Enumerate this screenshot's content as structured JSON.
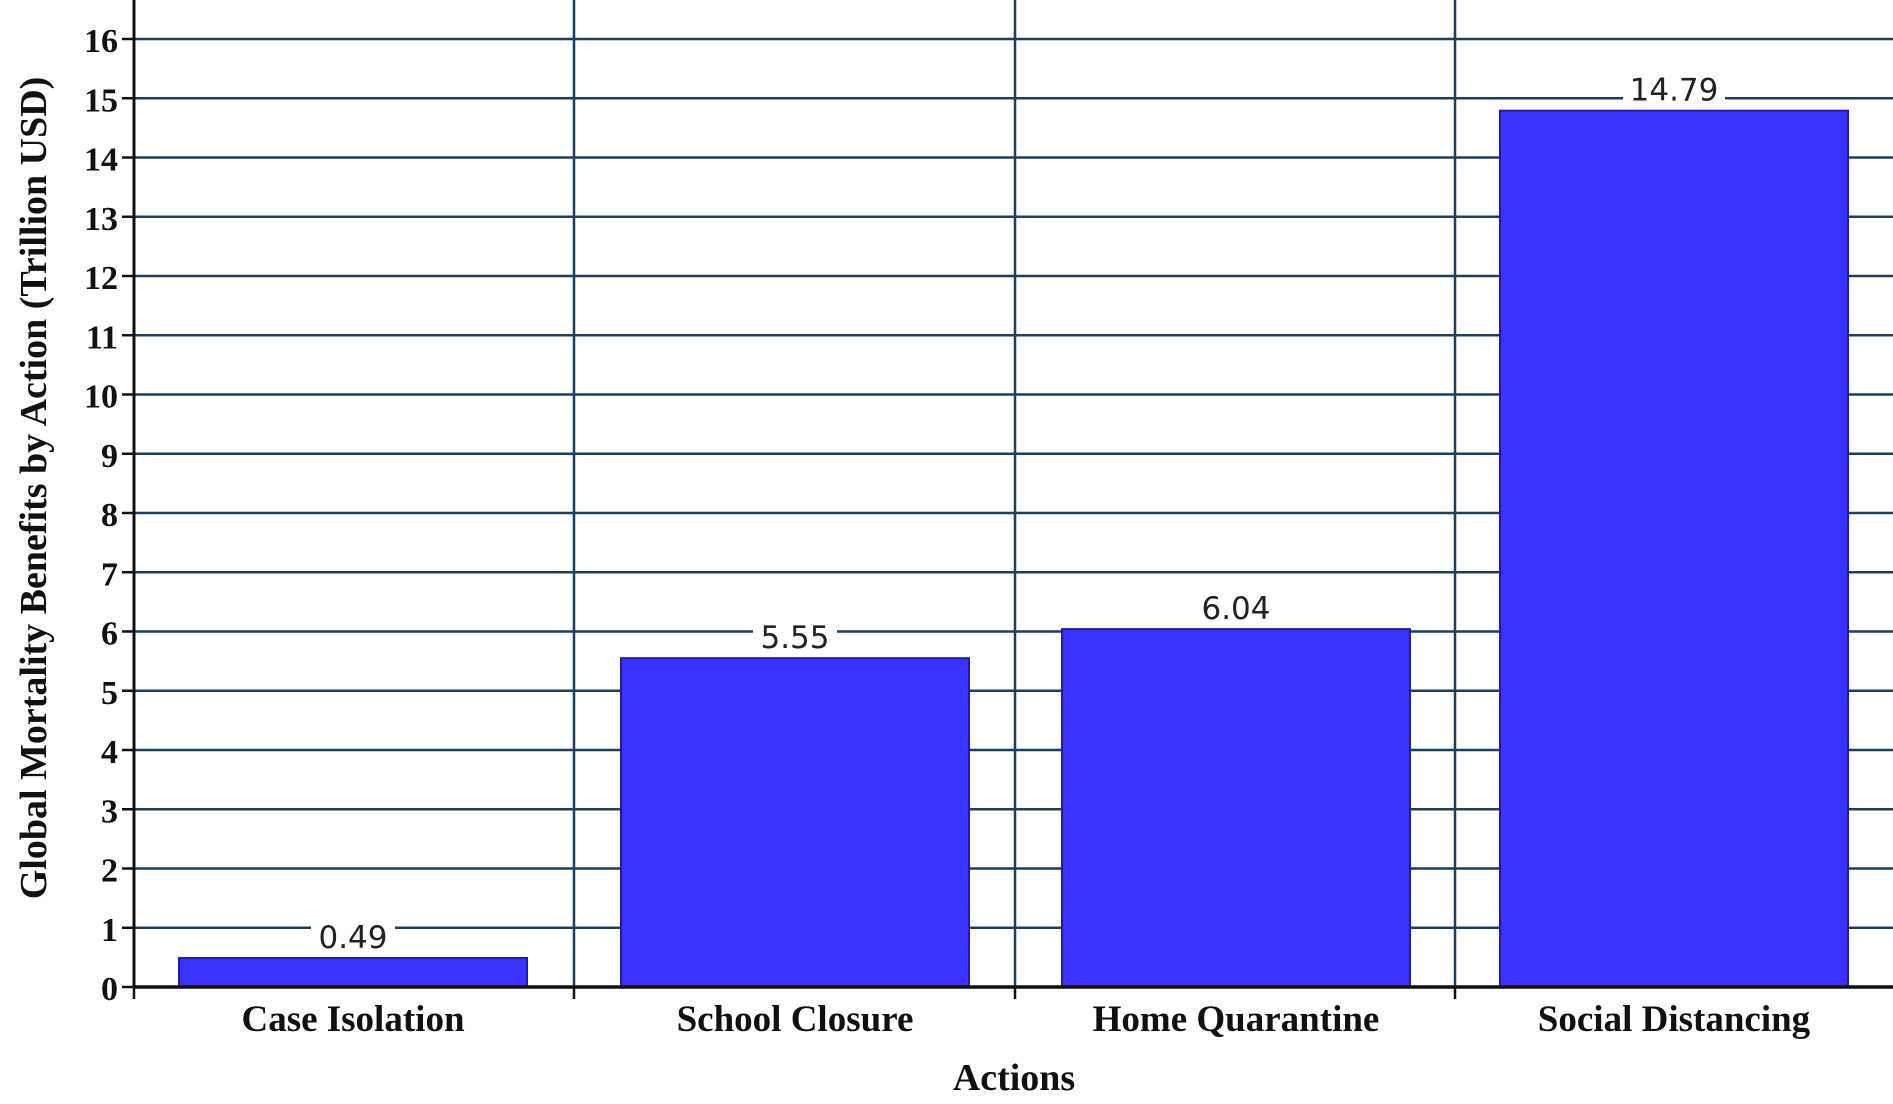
{
  "chart_data": {
    "type": "bar",
    "title": "",
    "xlabel": "Actions",
    "ylabel": "Global Mortality Benefits by Action (Trillion USD)",
    "categories": [
      "Case Isolation",
      "School Closure",
      "Home Quarantine",
      "Social Distancing"
    ],
    "values": [
      0.49,
      5.55,
      6.04,
      14.79
    ],
    "data_labels": [
      "0.49",
      "5.55",
      "6.04",
      "14.79"
    ],
    "ylim": [
      0,
      16
    ],
    "yticks": [
      "0",
      "1",
      "2",
      "3",
      "4",
      "5",
      "6",
      "7",
      "8",
      "9",
      "10",
      "11",
      "12",
      "13",
      "14",
      "15",
      "16"
    ],
    "grid": true,
    "legend": "none",
    "colors": {
      "bar": "#3a33ff",
      "bar_edge": "#1f1aa8",
      "grid": "#1c3f5e",
      "axis": "#111111"
    }
  }
}
